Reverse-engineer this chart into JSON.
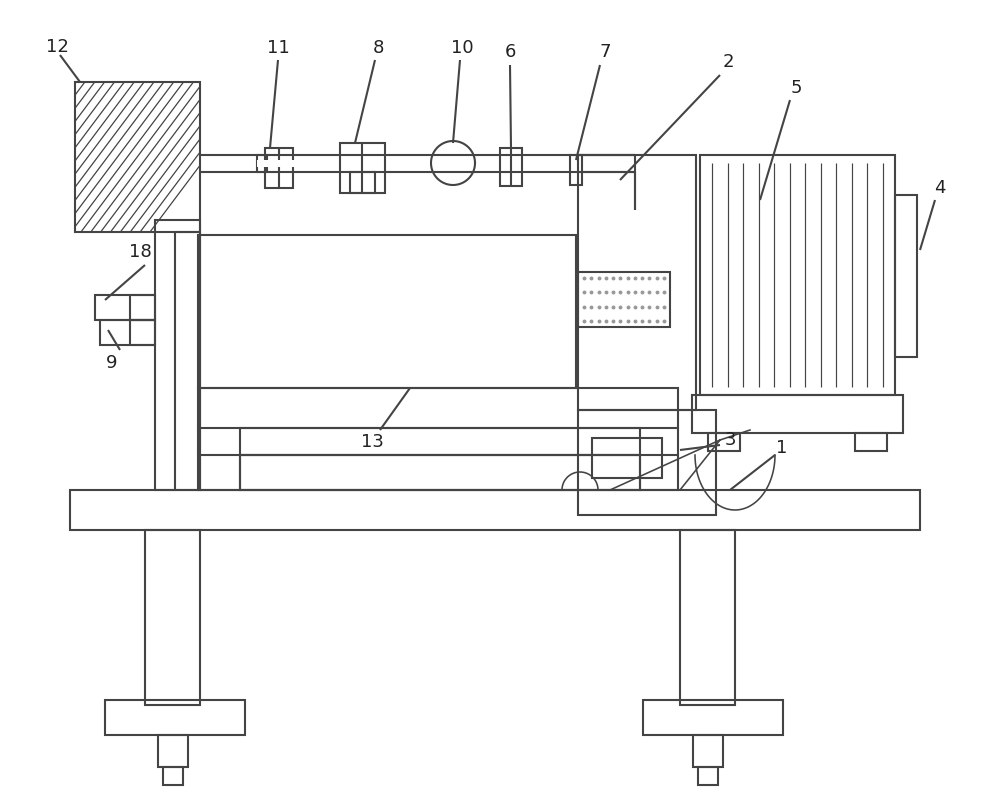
{
  "bg": "#ffffff",
  "lc": "#444444",
  "lw": 1.5,
  "lw_thin": 0.85,
  "figsize": [
    10.0,
    7.89
  ],
  "dpi": 100
}
